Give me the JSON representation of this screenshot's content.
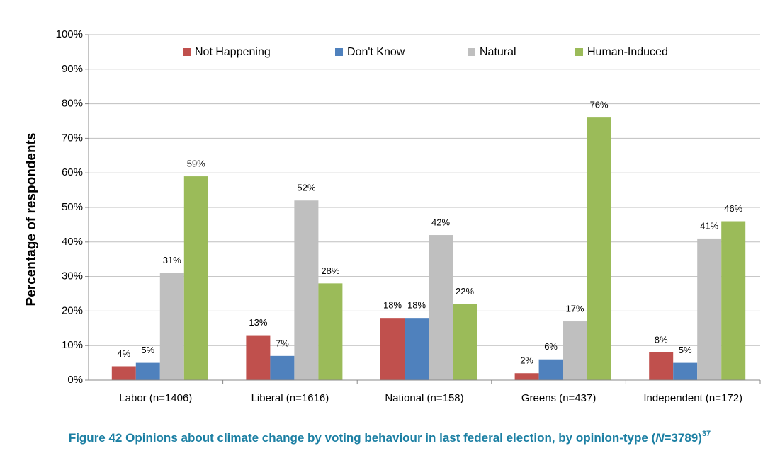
{
  "chart_data": {
    "type": "bar",
    "y_label": "Percentage of respondents",
    "caption": [
      "Figure 42 Opinions about climate change by voting behaviour in last federal election, by opinion-type (",
      "N",
      "=3789)"
    ],
    "footnote": "37",
    "categories": [
      "Labor (n=1406)",
      "Liberal (n=1616)",
      "National (n=158)",
      "Greens (n=437)",
      "Independent (n=172)"
    ],
    "series": [
      {
        "name": "Not Happening",
        "color": "#c0504d",
        "values": [
          4,
          13,
          18,
          2,
          8
        ],
        "value_labels": [
          "4%",
          "13%",
          "18%",
          "2%",
          "8%"
        ]
      },
      {
        "name": "Don't Know",
        "color": "#4f81bd",
        "values": [
          5,
          7,
          18,
          6,
          5
        ],
        "value_labels": [
          "5%",
          "7%",
          "18%",
          "6%",
          "5%"
        ]
      },
      {
        "name": "Natural",
        "color": "#bfbfbf",
        "values": [
          31,
          52,
          42,
          17,
          41
        ],
        "value_labels": [
          "31%",
          "52%",
          "42%",
          "17%",
          "41%"
        ]
      },
      {
        "name": "Human-Induced",
        "color": "#9bbb59",
        "values": [
          59,
          28,
          22,
          76,
          46
        ],
        "value_labels": [
          "59%",
          "28%",
          "22%",
          "76%",
          "46%"
        ]
      }
    ],
    "ylim": [
      0,
      100
    ],
    "yticks": [
      {
        "value": 0,
        "label": "0%"
      },
      {
        "value": 10,
        "label": "10%"
      },
      {
        "value": 20,
        "label": "20%"
      },
      {
        "value": 30,
        "label": "30%"
      },
      {
        "value": 40,
        "label": "40%"
      },
      {
        "value": 50,
        "label": "50%"
      },
      {
        "value": 60,
        "label": "60%"
      },
      {
        "value": 70,
        "label": "70%"
      },
      {
        "value": 80,
        "label": "80%"
      },
      {
        "value": 90,
        "label": "90%"
      },
      {
        "value": 100,
        "label": "100%"
      }
    ],
    "grid": true,
    "legend": "top"
  }
}
